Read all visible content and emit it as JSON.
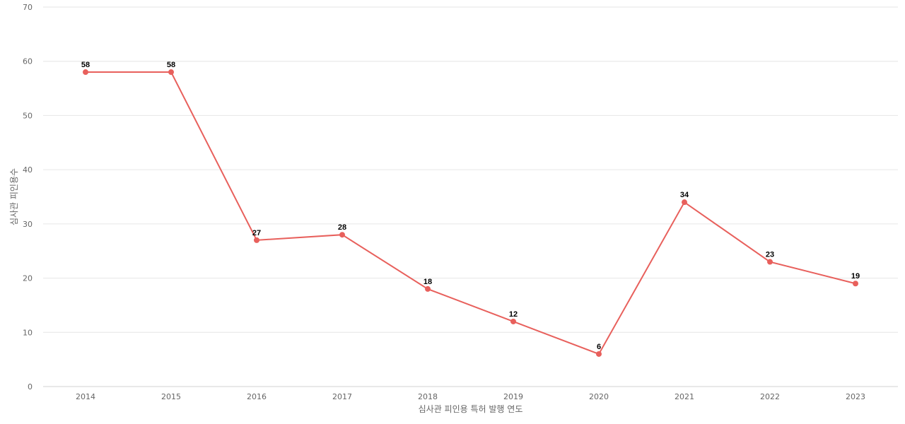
{
  "chart_data": {
    "type": "line",
    "title": "",
    "xlabel": "심사관 피인용 특허 발행 연도",
    "ylabel": "심사관 피인용수",
    "categories": [
      "2014",
      "2015",
      "2016",
      "2017",
      "2018",
      "2019",
      "2020",
      "2021",
      "2022",
      "2023"
    ],
    "series": [
      {
        "values": [
          58,
          58,
          27,
          28,
          18,
          12,
          6,
          34,
          23,
          19
        ],
        "color": "#e8605c"
      }
    ],
    "ylim": [
      0,
      70
    ],
    "yticks": [
      0,
      10,
      20,
      30,
      40,
      50,
      60,
      70
    ],
    "data_labels": true,
    "grid": true,
    "legend": "none"
  }
}
